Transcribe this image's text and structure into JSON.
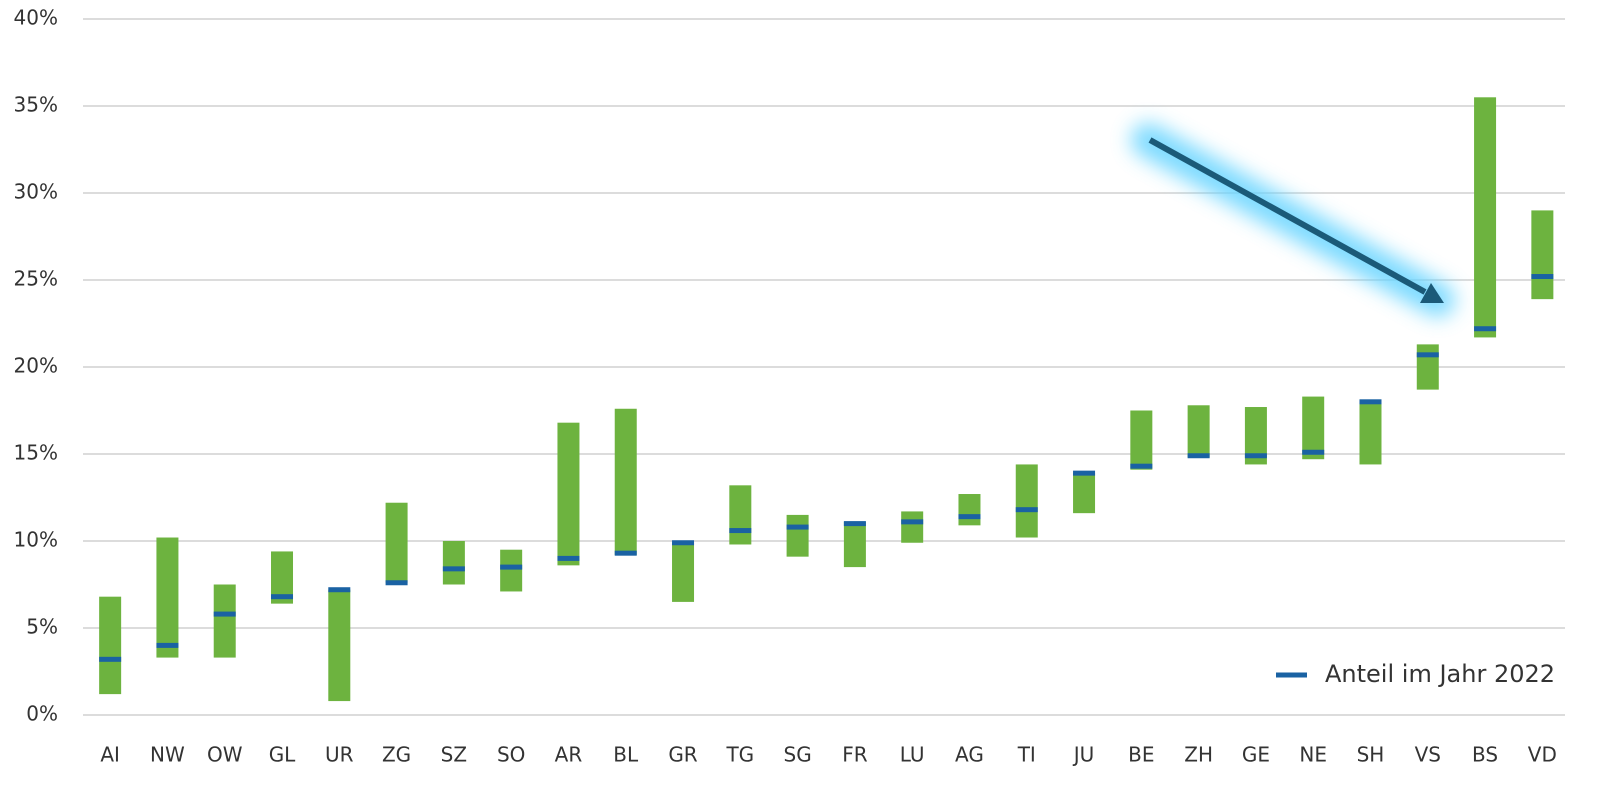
{
  "chart_data": {
    "type": "range_bar",
    "categories": [
      "AI",
      "NW",
      "OW",
      "GL",
      "UR",
      "ZG",
      "SZ",
      "SO",
      "AR",
      "BL",
      "GR",
      "TG",
      "SG",
      "FR",
      "LU",
      "AG",
      "TI",
      "JU",
      "BE",
      "ZH",
      "GE",
      "NE",
      "SH",
      "VS",
      "BS",
      "VD"
    ],
    "ranges": [
      [
        1.2,
        6.8
      ],
      [
        3.3,
        10.2
      ],
      [
        3.3,
        7.5
      ],
      [
        6.4,
        9.4
      ],
      [
        0.8,
        7.2
      ],
      [
        7.6,
        12.2
      ],
      [
        7.5,
        10.0
      ],
      [
        7.1,
        9.5
      ],
      [
        8.6,
        16.8
      ],
      [
        9.2,
        17.6
      ],
      [
        6.5,
        9.9
      ],
      [
        9.8,
        13.2
      ],
      [
        9.1,
        11.5
      ],
      [
        8.5,
        11.1
      ],
      [
        9.9,
        11.7
      ],
      [
        10.9,
        12.7
      ],
      [
        10.2,
        14.4
      ],
      [
        11.6,
        13.9
      ],
      [
        14.1,
        17.5
      ],
      [
        14.8,
        17.8
      ],
      [
        14.4,
        17.7
      ],
      [
        14.7,
        18.3
      ],
      [
        14.4,
        18.1
      ],
      [
        18.7,
        21.3
      ],
      [
        21.7,
        35.5
      ],
      [
        23.9,
        29.0
      ]
    ],
    "range_color": "#6db33f",
    "series": [
      {
        "name": "Anteil im Jahr 2022",
        "color": "#1a62a3",
        "values": [
          3.2,
          4.0,
          5.8,
          6.8,
          7.2,
          7.6,
          8.4,
          8.5,
          9.0,
          9.3,
          9.9,
          10.6,
          10.8,
          11.0,
          11.1,
          11.4,
          11.8,
          13.9,
          14.3,
          14.9,
          14.9,
          15.1,
          18.0,
          20.7,
          22.2,
          25.2
        ]
      }
    ],
    "ylim": [
      0,
      40
    ],
    "yticks": [
      {
        "value": 0,
        "label": "0%"
      },
      {
        "value": 5,
        "label": "5%"
      },
      {
        "value": 10,
        "label": "10%"
      },
      {
        "value": 15,
        "label": "15%"
      },
      {
        "value": 20,
        "label": "20%"
      },
      {
        "value": 25,
        "label": "25%"
      },
      {
        "value": 30,
        "label": "30%"
      },
      {
        "value": 35,
        "label": "35%"
      },
      {
        "value": 40,
        "label": "40%"
      }
    ],
    "grid": true,
    "legend": "bottom-right"
  }
}
